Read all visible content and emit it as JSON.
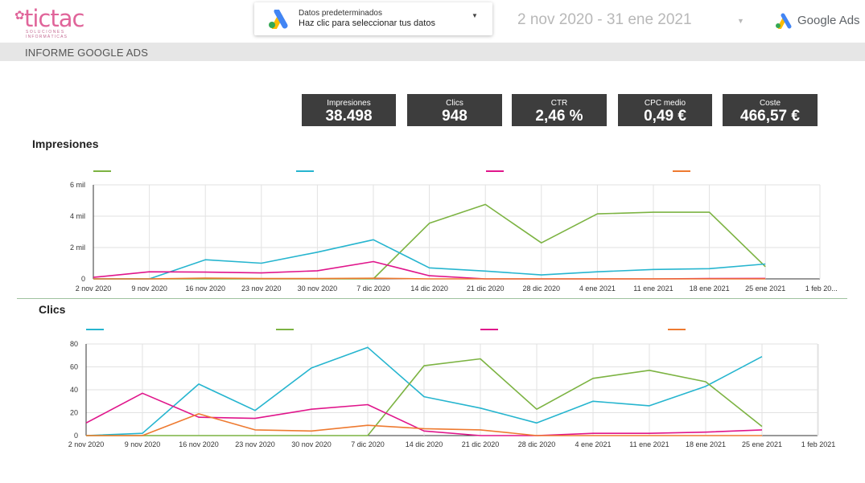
{
  "header": {
    "logo_text": "tictac",
    "logo_tagline_1": "SOLUCIONES",
    "logo_tagline_2": "INFORMÁTICAS",
    "data_source_title": "Datos predeterminados",
    "data_source_subtitle": "Haz clic para seleccionar tus datos",
    "date_range": "2 nov 2020 - 31 ene 2021",
    "google_ads_label": "Google Ads"
  },
  "report": {
    "title": "INFORME GOOGLE ADS"
  },
  "kpis": [
    {
      "label": "Impresiones",
      "value": "38.498"
    },
    {
      "label": "Clics",
      "value": "948"
    },
    {
      "label": "CTR",
      "value": "2,46 %"
    },
    {
      "label": "CPC medio",
      "value": "0,49 €"
    },
    {
      "label": "Coste",
      "value": "466,57 €"
    }
  ],
  "colors": {
    "green": "#7cb342",
    "cyan": "#26b5cf",
    "magenta": "#e0158b",
    "orange": "#ee7a30",
    "kpi_bg": "#3d3d3d"
  },
  "chart_data": [
    {
      "type": "line",
      "title": "Impresiones",
      "x": [
        "2 nov 2020",
        "9 nov 2020",
        "16 nov 2020",
        "23 nov 2020",
        "30 nov 2020",
        "7 dic 2020",
        "14 dic 2020",
        "21 dic 2020",
        "28 dic 2020",
        "4 ene 2021",
        "11 ene 2021",
        "18 ene 2021",
        "25 ene 2021",
        "1 feb 20..."
      ],
      "yticks": [
        "0",
        "2 mil",
        "4 mil",
        "6 mil"
      ],
      "ylim": [
        0,
        6000
      ],
      "grid": true,
      "series": [
        {
          "color": "#7cb342",
          "values": [
            0,
            0,
            0,
            0,
            0,
            0,
            3550,
            4750,
            2300,
            4150,
            4250,
            4250,
            780,
            null
          ]
        },
        {
          "color": "#26b5cf",
          "values": [
            0,
            0,
            1220,
            1000,
            1700,
            2500,
            700,
            500,
            250,
            450,
            600,
            650,
            950,
            null
          ]
        },
        {
          "color": "#e0158b",
          "values": [
            100,
            450,
            430,
            380,
            520,
            1100,
            200,
            0,
            0,
            0,
            0,
            20,
            30,
            null
          ]
        },
        {
          "color": "#ee7a30",
          "values": [
            0,
            0,
            50,
            20,
            20,
            40,
            0,
            0,
            0,
            0,
            0,
            0,
            0,
            null
          ]
        }
      ]
    },
    {
      "type": "line",
      "title": "Clics",
      "x": [
        "2 nov 2020",
        "9 nov 2020",
        "16 nov 2020",
        "23 nov 2020",
        "30 nov 2020",
        "7 dic 2020",
        "14 dic 2020",
        "21 dic 2020",
        "28 dic 2020",
        "4 ene 2021",
        "11 ene 2021",
        "18 ene 2021",
        "25 ene 2021",
        "1 feb 2021"
      ],
      "yticks": [
        "0",
        "20",
        "40",
        "60",
        "80"
      ],
      "ylim": [
        0,
        80
      ],
      "grid": true,
      "series": [
        {
          "color": "#26b5cf",
          "values": [
            0,
            2,
            45,
            22,
            59,
            77,
            34,
            24,
            11,
            30,
            26,
            43,
            69,
            null
          ]
        },
        {
          "color": "#7cb342",
          "values": [
            0,
            0,
            0,
            0,
            0,
            0,
            61,
            67,
            23,
            50,
            57,
            47,
            8,
            null
          ]
        },
        {
          "color": "#e0158b",
          "values": [
            11,
            37,
            16,
            15,
            23,
            27,
            4,
            0,
            0,
            2,
            2,
            3,
            5,
            null
          ]
        },
        {
          "color": "#ee7a30",
          "values": [
            0,
            0,
            19,
            5,
            4,
            9,
            6,
            5,
            0,
            0,
            0,
            0,
            0,
            null
          ]
        }
      ]
    }
  ]
}
